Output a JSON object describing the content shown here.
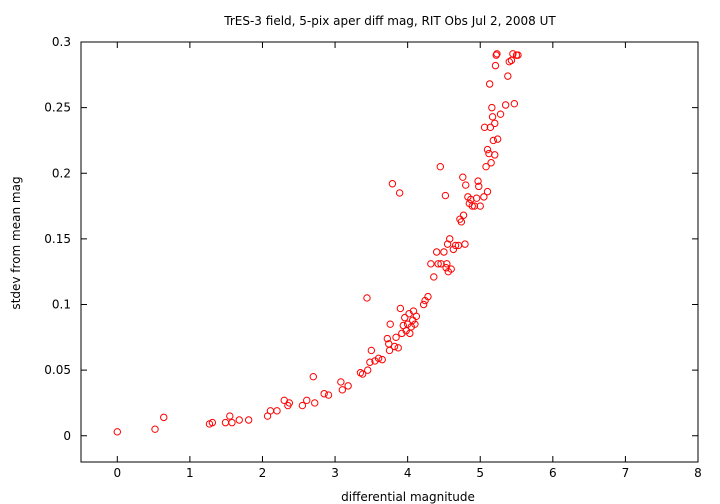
{
  "chart_data": {
    "type": "scatter",
    "title": "TrES-3 field,  5-pix aper diff mag, RIT Obs Jul 2, 2008 UT",
    "xlabel": "differential magnitude",
    "ylabel": "stdev from mean mag",
    "xlim": [
      -0.5,
      8
    ],
    "ylim": [
      -0.02,
      0.3
    ],
    "xticks": [
      0,
      1,
      2,
      3,
      4,
      5,
      6,
      7,
      8
    ],
    "yticks": [
      0,
      0.05,
      0.1,
      0.15,
      0.2,
      0.25,
      0.3
    ],
    "grid": false,
    "legend": "none",
    "marker": "open-circle",
    "color": "#ff0000",
    "points": [
      [
        0.0,
        0.003
      ],
      [
        0.52,
        0.005
      ],
      [
        0.64,
        0.014
      ],
      [
        1.27,
        0.009
      ],
      [
        1.31,
        0.01
      ],
      [
        1.49,
        0.01
      ],
      [
        1.55,
        0.015
      ],
      [
        1.58,
        0.01
      ],
      [
        1.68,
        0.012
      ],
      [
        1.81,
        0.012
      ],
      [
        2.07,
        0.015
      ],
      [
        2.11,
        0.019
      ],
      [
        2.2,
        0.019
      ],
      [
        2.3,
        0.027
      ],
      [
        2.35,
        0.023
      ],
      [
        2.37,
        0.025
      ],
      [
        2.55,
        0.023
      ],
      [
        2.61,
        0.027
      ],
      [
        2.7,
        0.045
      ],
      [
        2.72,
        0.025
      ],
      [
        2.85,
        0.032
      ],
      [
        2.91,
        0.031
      ],
      [
        3.08,
        0.041
      ],
      [
        3.1,
        0.035
      ],
      [
        3.18,
        0.038
      ],
      [
        3.35,
        0.048
      ],
      [
        3.38,
        0.047
      ],
      [
        3.44,
        0.105
      ],
      [
        3.45,
        0.05
      ],
      [
        3.48,
        0.056
      ],
      [
        3.5,
        0.065
      ],
      [
        3.55,
        0.057
      ],
      [
        3.6,
        0.059
      ],
      [
        3.65,
        0.058
      ],
      [
        3.72,
        0.074
      ],
      [
        3.74,
        0.07
      ],
      [
        3.75,
        0.065
      ],
      [
        3.76,
        0.085
      ],
      [
        3.79,
        0.192
      ],
      [
        3.82,
        0.068
      ],
      [
        3.84,
        0.075
      ],
      [
        3.87,
        0.067
      ],
      [
        3.89,
        0.185
      ],
      [
        3.9,
        0.097
      ],
      [
        3.92,
        0.078
      ],
      [
        3.94,
        0.084
      ],
      [
        3.96,
        0.09
      ],
      [
        3.98,
        0.08
      ],
      [
        4.0,
        0.085
      ],
      [
        4.02,
        0.093
      ],
      [
        4.03,
        0.078
      ],
      [
        4.05,
        0.083
      ],
      [
        4.07,
        0.088
      ],
      [
        4.08,
        0.095
      ],
      [
        4.1,
        0.085
      ],
      [
        4.12,
        0.091
      ],
      [
        4.22,
        0.1
      ],
      [
        4.24,
        0.103
      ],
      [
        4.28,
        0.106
      ],
      [
        4.32,
        0.131
      ],
      [
        4.36,
        0.121
      ],
      [
        4.4,
        0.14
      ],
      [
        4.42,
        0.131
      ],
      [
        4.45,
        0.205
      ],
      [
        4.46,
        0.131
      ],
      [
        4.5,
        0.14
      ],
      [
        4.52,
        0.183
      ],
      [
        4.53,
        0.128
      ],
      [
        4.54,
        0.131
      ],
      [
        4.55,
        0.146
      ],
      [
        4.56,
        0.125
      ],
      [
        4.58,
        0.15
      ],
      [
        4.6,
        0.127
      ],
      [
        4.63,
        0.142
      ],
      [
        4.66,
        0.145
      ],
      [
        4.7,
        0.145
      ],
      [
        4.72,
        0.165
      ],
      [
        4.74,
        0.163
      ],
      [
        4.76,
        0.197
      ],
      [
        4.77,
        0.168
      ],
      [
        4.79,
        0.146
      ],
      [
        4.8,
        0.191
      ],
      [
        4.83,
        0.182
      ],
      [
        4.85,
        0.177
      ],
      [
        4.87,
        0.18
      ],
      [
        4.89,
        0.175
      ],
      [
        4.92,
        0.175
      ],
      [
        4.95,
        0.181
      ],
      [
        4.97,
        0.194
      ],
      [
        4.98,
        0.19
      ],
      [
        5.0,
        0.175
      ],
      [
        5.05,
        0.182
      ],
      [
        5.06,
        0.235
      ],
      [
        5.08,
        0.205
      ],
      [
        5.1,
        0.186
      ],
      [
        5.1,
        0.218
      ],
      [
        5.12,
        0.215
      ],
      [
        5.13,
        0.268
      ],
      [
        5.14,
        0.235
      ],
      [
        5.15,
        0.208
      ],
      [
        5.16,
        0.25
      ],
      [
        5.17,
        0.243
      ],
      [
        5.18,
        0.225
      ],
      [
        5.2,
        0.214
      ],
      [
        5.2,
        0.238
      ],
      [
        5.21,
        0.282
      ],
      [
        5.22,
        0.29
      ],
      [
        5.23,
        0.291
      ],
      [
        5.24,
        0.226
      ],
      [
        5.28,
        0.245
      ],
      [
        5.35,
        0.252
      ],
      [
        5.38,
        0.274
      ],
      [
        5.4,
        0.285
      ],
      [
        5.43,
        0.286
      ],
      [
        5.45,
        0.291
      ],
      [
        5.47,
        0.253
      ],
      [
        5.5,
        0.29
      ],
      [
        5.52,
        0.29
      ]
    ]
  }
}
